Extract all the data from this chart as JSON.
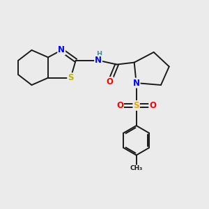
{
  "bg_color": "#ebebeb",
  "bond_color": "#1a1a1a",
  "bond_width": 1.4,
  "atom_colors": {
    "N": "#0000ff",
    "S": "#b8b800",
    "S_sulfonyl": "#e6a800",
    "O": "#ff0000",
    "C": "#1a1a1a",
    "H": "#4a9090"
  },
  "font_size": 8.5
}
